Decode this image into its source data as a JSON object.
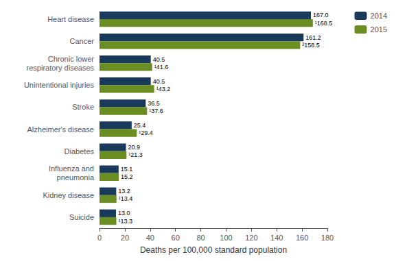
{
  "chart_data": {
    "type": "bar",
    "orientation": "horizontal",
    "categories": [
      "Suicide",
      "Kidney disease",
      "Influenza and\npneumonia",
      "Diabetes",
      "Alzheimer's disease",
      "Stroke",
      "Unintentional injuries",
      "Chronic lower\nrespiratory diseases",
      "Cancer",
      "Heart disease"
    ],
    "series": [
      {
        "name": "2014",
        "color": "#1a3a5c",
        "values": [
          13.0,
          13.2,
          15.1,
          20.9,
          25.4,
          36.5,
          40.5,
          40.5,
          161.2,
          167.0
        ],
        "value_labels": [
          "13.0",
          "13.2",
          "15.1",
          "20.9",
          "25.4",
          "36.5",
          "40.5",
          "40.5",
          "161.2",
          "167.0"
        ]
      },
      {
        "name": "2015",
        "color": "#6b8e23",
        "values": [
          13.3,
          13.4,
          15.2,
          21.3,
          29.4,
          37.6,
          43.2,
          41.6,
          158.5,
          168.5
        ],
        "value_labels": [
          "¹13.3",
          "¹13.4",
          "15.2",
          "¹21.3",
          "¹29.4",
          "¹37.6",
          "¹43.2",
          "¹41.6",
          "²158.5",
          "¹168.5"
        ]
      }
    ],
    "xlabel": "Deaths per 100,000 standard population",
    "xlim": [
      0,
      180
    ],
    "xticks": [
      0,
      20,
      40,
      60,
      80,
      100,
      120,
      140,
      160,
      180
    ],
    "data_labels": true,
    "legend": "upper right",
    "grid": false
  }
}
